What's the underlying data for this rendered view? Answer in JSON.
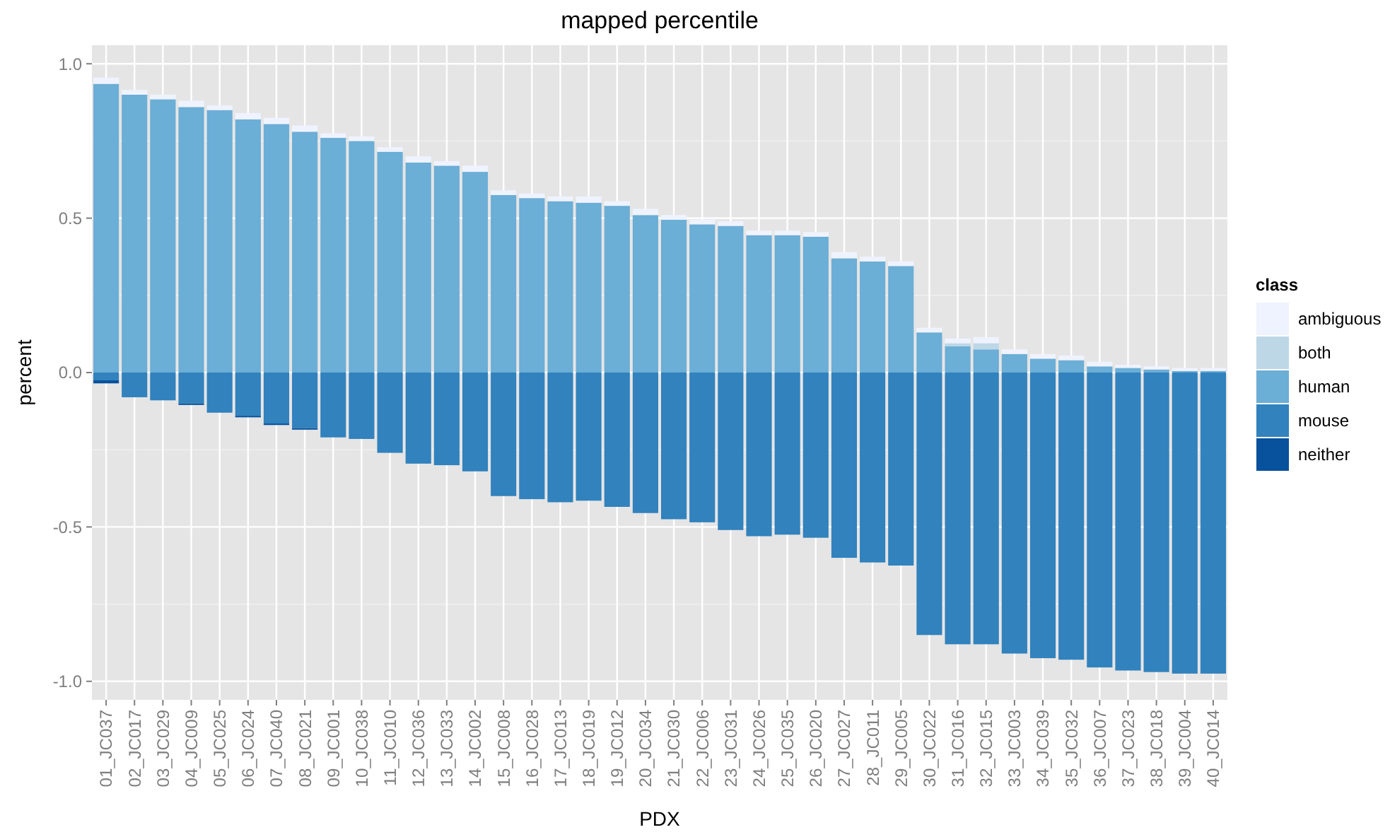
{
  "chart_data": {
    "type": "bar",
    "title": "mapped percentile",
    "xlabel": "PDX",
    "ylabel": "percent",
    "legend_title": "class",
    "stacked": true,
    "grid": true,
    "legend": "right",
    "categories": [
      "01_JC037",
      "02_JC017",
      "03_JC029",
      "04_JC009",
      "05_JC025",
      "06_JC024",
      "07_JC040",
      "08_JC021",
      "09_JC001",
      "10_JC038",
      "11_JC010",
      "12_JC036",
      "13_JC033",
      "14_JC002",
      "15_JC008",
      "16_JC028",
      "17_JC013",
      "18_JC019",
      "19_JC012",
      "20_JC034",
      "21_JC030",
      "22_JC006",
      "23_JC031",
      "24_JC026",
      "25_JC035",
      "26_JC020",
      "27_JC027",
      "28_JC011",
      "29_JC005",
      "30_JC022",
      "31_JC016",
      "32_JC015",
      "33_JC003",
      "34_JC039",
      "35_JC032",
      "36_JC007",
      "37_JC023",
      "38_JC018",
      "39_JC004",
      "40_JC014"
    ],
    "ylim": [
      -1.06,
      1.06
    ],
    "yticks": [
      {
        "value": -1,
        "label": "-1.0"
      },
      {
        "value": -0.5,
        "label": "-0.5"
      },
      {
        "value": 0,
        "label": "0.0"
      },
      {
        "value": 0.5,
        "label": "0.5"
      },
      {
        "value": 1,
        "label": "1.0"
      }
    ],
    "series": [
      {
        "name": "human",
        "color": "#6baed6",
        "values": [
          0.935,
          0.9,
          0.885,
          0.86,
          0.85,
          0.82,
          0.805,
          0.78,
          0.76,
          0.75,
          0.715,
          0.68,
          0.67,
          0.65,
          0.575,
          0.565,
          0.555,
          0.55,
          0.54,
          0.51,
          0.495,
          0.48,
          0.475,
          0.445,
          0.445,
          0.44,
          0.37,
          0.36,
          0.345,
          0.13,
          0.085,
          0.075,
          0.06,
          0.045,
          0.04,
          0.02,
          0.015,
          0.01,
          0.005,
          0.005
        ]
      },
      {
        "name": "both",
        "color": "#bdd7e7",
        "values": [
          0,
          0,
          0,
          0,
          0,
          0,
          0,
          0,
          0,
          0,
          0,
          0,
          0,
          0,
          0,
          0,
          0,
          0,
          0,
          0,
          0,
          0,
          0,
          0,
          0,
          0,
          0,
          0,
          0,
          0,
          0.01,
          0.02,
          0,
          0,
          0,
          0,
          0,
          0,
          0,
          0
        ]
      },
      {
        "name": "ambiguous",
        "color": "#eff3ff",
        "values": [
          0.02,
          0.015,
          0.015,
          0.02,
          0.015,
          0.02,
          0.02,
          0.02,
          0.015,
          0.015,
          0.015,
          0.02,
          0.015,
          0.02,
          0.015,
          0.015,
          0.015,
          0.02,
          0.015,
          0.02,
          0.015,
          0.015,
          0.015,
          0.015,
          0.015,
          0.015,
          0.02,
          0.015,
          0.015,
          0.015,
          0.015,
          0.02,
          0.015,
          0.015,
          0.015,
          0.015,
          0.01,
          0.01,
          0.01,
          0.01
        ]
      },
      {
        "name": "mouse",
        "color": "#3182bd",
        "values": [
          -0.025,
          -0.08,
          -0.09,
          -0.1,
          -0.13,
          -0.14,
          -0.165,
          -0.18,
          -0.21,
          -0.215,
          -0.26,
          -0.295,
          -0.3,
          -0.32,
          -0.4,
          -0.41,
          -0.42,
          -0.415,
          -0.435,
          -0.455,
          -0.475,
          -0.485,
          -0.51,
          -0.53,
          -0.525,
          -0.535,
          -0.6,
          -0.615,
          -0.625,
          -0.85,
          -0.88,
          -0.88,
          -0.91,
          -0.925,
          -0.93,
          -0.955,
          -0.965,
          -0.97,
          -0.975,
          -0.975
        ]
      },
      {
        "name": "neither",
        "color": "#08519c",
        "values": [
          -0.01,
          0,
          0,
          -0.005,
          0,
          -0.005,
          -0.005,
          -0.005,
          0,
          0,
          0,
          0,
          0,
          0,
          0,
          0,
          0,
          0,
          0,
          0,
          0,
          0,
          0,
          0,
          0,
          0,
          0,
          0,
          0,
          0,
          0,
          0,
          0,
          0,
          0,
          0,
          0,
          0,
          0,
          0
        ]
      }
    ]
  }
}
